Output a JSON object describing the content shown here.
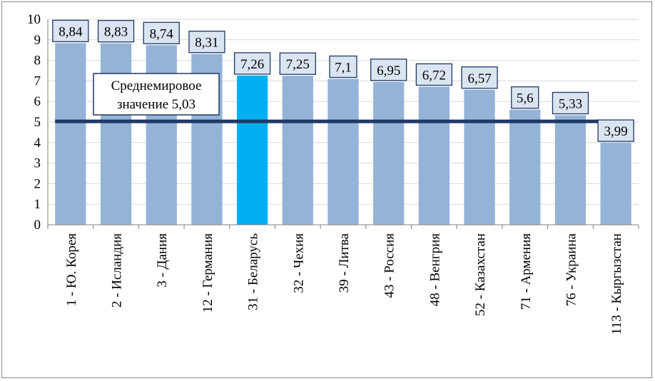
{
  "chart_data": {
    "type": "bar",
    "title": "",
    "xlabel": "",
    "ylabel": "",
    "ylim": [
      0,
      10
    ],
    "yticks": [
      "0",
      "1",
      "2",
      "3",
      "4",
      "5",
      "6",
      "7",
      "8",
      "9",
      "10"
    ],
    "grid": true,
    "categories": [
      "1 - Ю. Корея",
      "2 - Исландия",
      "3 - Дания",
      "12 - Германия",
      "31 - Беларусь",
      "32 - Чехия",
      "39 - Литва",
      "43 - Россия",
      "48 - Венгрия",
      "52 - Казахстан",
      "71 - Армения",
      "76 - Украина",
      "113 - Кыргызстан"
    ],
    "values": [
      8.84,
      8.83,
      8.74,
      8.31,
      7.26,
      7.25,
      7.1,
      6.95,
      6.72,
      6.57,
      5.6,
      5.33,
      3.99
    ],
    "value_labels": [
      "8,84",
      "8,83",
      "8,74",
      "8,31",
      "7,26",
      "7,25",
      "7,1",
      "6,95",
      "6,72",
      "6,57",
      "5,6",
      "5,33",
      "3,99"
    ],
    "highlight_index": 4,
    "reference_line": {
      "value": 5.03,
      "label_line1": "Среднемировое",
      "label_line2": "значение 5,03"
    },
    "colors": {
      "bar": "#95b3d7",
      "bar_highlight": "#00b0f0",
      "reference_line": "#1f3864",
      "label_box_fill": "#dbe5f1",
      "label_box_border": "#1f3864",
      "grid": "#d9d9d9"
    }
  }
}
